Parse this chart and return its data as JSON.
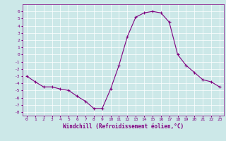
{
  "x": [
    0,
    1,
    2,
    3,
    4,
    5,
    6,
    7,
    8,
    9,
    10,
    11,
    12,
    13,
    14,
    15,
    16,
    17,
    18,
    19,
    20,
    21,
    22,
    23
  ],
  "y": [
    -3,
    -3.8,
    -4.5,
    -4.5,
    -4.8,
    -5.0,
    -5.8,
    -6.5,
    -7.5,
    -7.5,
    -4.8,
    -1.5,
    2.5,
    5.2,
    5.8,
    6.0,
    5.8,
    4.5,
    0.0,
    -1.5,
    -2.5,
    -3.5,
    -3.8,
    -4.5
  ],
  "line_color": "#800080",
  "marker": "+",
  "bg_color": "#cce8e8",
  "grid_color": "#ffffff",
  "xlabel": "Windchill (Refroidissement éolien,°C)",
  "xlabel_color": "#800080",
  "tick_color": "#800080",
  "ylabel_ticks": [
    6,
    5,
    4,
    3,
    2,
    1,
    0,
    -1,
    -2,
    -3,
    -4,
    -5,
    -6,
    -7,
    -8
  ],
  "ylim": [
    -8.5,
    7.0
  ],
  "xlim": [
    -0.5,
    23.5
  ],
  "font_size_ticks": 4.5,
  "font_size_xlabel": 5.5
}
